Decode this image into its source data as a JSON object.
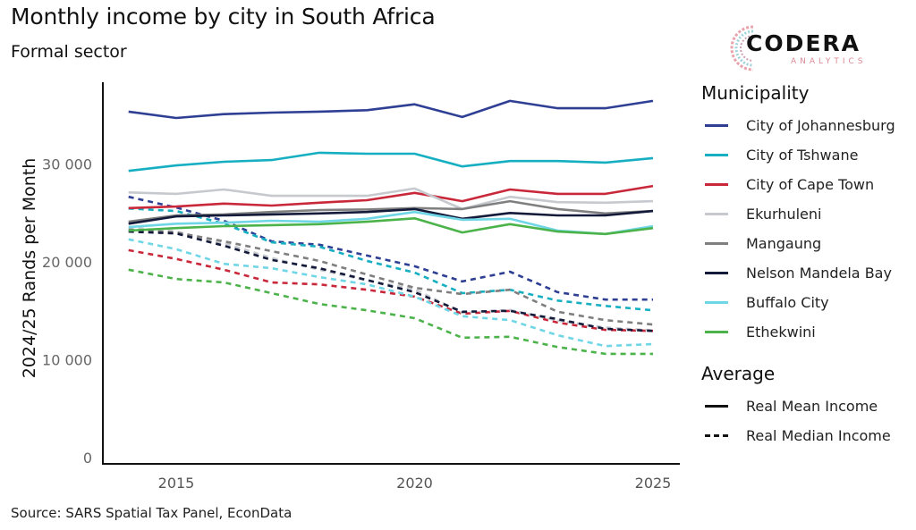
{
  "header": {
    "title": "Monthly income by city in South Africa",
    "subtitle": "Formal sector"
  },
  "logo": {
    "name": "CODERA",
    "tagline": "ANALYTICS"
  },
  "footer": {
    "source": "Source: SARS Spatial Tax Panel, EconData"
  },
  "legend": {
    "municipality_title": "Municipality",
    "average_title": "Average",
    "municipalities": [
      {
        "name": "City of Johannesburg",
        "color": "#2e3f94"
      },
      {
        "name": "City of Tshwane",
        "color": "#16afc2"
      },
      {
        "name": "City of Cape Town",
        "color": "#c8283a"
      },
      {
        "name": "Ekurhuleni",
        "color": "#c6c9ce"
      },
      {
        "name": "Mangaung",
        "color": "#7f7f7f"
      },
      {
        "name": "Nelson Mandela Bay",
        "color": "#141a3a"
      },
      {
        "name": "Buffalo City",
        "color": "#6fd6e6"
      },
      {
        "name": "Ethekwini",
        "color": "#4cb34a"
      }
    ],
    "averages": [
      {
        "name": "Real Mean Income",
        "style": "solid"
      },
      {
        "name": "Real Median Income",
        "style": "dashed"
      }
    ]
  },
  "chart_data": {
    "type": "line",
    "title": "Monthly income by city in South Africa",
    "subtitle": "Formal sector",
    "xlabel": "",
    "ylabel": "2024/25 Rands per Month",
    "x": [
      2014,
      2015,
      2016,
      2017,
      2018,
      2019,
      2020,
      2021,
      2022,
      2023,
      2024,
      2025
    ],
    "xlim": [
      2013,
      2025.6
    ],
    "ylim": [
      0,
      38000
    ],
    "xticks": [
      2015,
      2020,
      2025
    ],
    "xtick_labels": [
      "2015",
      "2020",
      "2025"
    ],
    "yticks": [
      0,
      10000,
      20000,
      30000
    ],
    "ytick_labels": [
      "0",
      "10 000",
      "20 000",
      "30 000"
    ],
    "grid": false,
    "legend_position": "right",
    "series": [
      {
        "name": "City of Johannesburg",
        "measure": "Real Mean Income",
        "color": "#2e3f94",
        "values": [
          35350,
          34700,
          35100,
          35250,
          35350,
          35500,
          36100,
          34800,
          36450,
          35700,
          35700,
          36450
        ]
      },
      {
        "name": "City of Tshwane",
        "measure": "Real Mean Income",
        "color": "#16afc2",
        "values": [
          29300,
          29850,
          30230,
          30400,
          31150,
          31050,
          31050,
          29750,
          30300,
          30300,
          30150,
          30600
        ]
      },
      {
        "name": "City of Cape Town",
        "measure": "Real Mean Income",
        "color": "#c8283a",
        "values": [
          25500,
          25650,
          25950,
          25750,
          26050,
          26300,
          27050,
          26200,
          27400,
          26950,
          26950,
          27750
        ]
      },
      {
        "name": "Ekurhuleni",
        "measure": "Real Mean Income",
        "color": "#c6c9ce",
        "values": [
          27100,
          26950,
          27400,
          26750,
          26750,
          26750,
          27500,
          25400,
          26650,
          26100,
          26050,
          26200
        ]
      },
      {
        "name": "Mangaung",
        "measure": "Real Mean Income",
        "color": "#7f7f7f",
        "values": [
          24100,
          24750,
          24850,
          25100,
          25300,
          25350,
          25500,
          25400,
          26200,
          25400,
          24950,
          25200
        ]
      },
      {
        "name": "Nelson Mandela Bay",
        "measure": "Real Mean Income",
        "color": "#141a3a",
        "values": [
          23900,
          24650,
          24750,
          24850,
          24950,
          25100,
          25400,
          24400,
          25000,
          24750,
          24750,
          25200
        ]
      },
      {
        "name": "Buffalo City",
        "measure": "Real Mean Income",
        "color": "#6fd6e6",
        "values": [
          23550,
          23900,
          24000,
          24200,
          24100,
          24400,
          25100,
          24300,
          24400,
          23200,
          22850,
          23650
        ]
      },
      {
        "name": "Ethekwini",
        "measure": "Real Mean Income",
        "color": "#4cb34a",
        "values": [
          23200,
          23450,
          23650,
          23750,
          23850,
          24100,
          24450,
          23000,
          23850,
          23100,
          22850,
          23450
        ]
      },
      {
        "name": "City of Johannesburg",
        "measure": "Real Median Income",
        "color": "#2e3f94",
        "values": [
          26650,
          25550,
          24200,
          22100,
          21750,
          20650,
          19550,
          18000,
          19000,
          16900,
          16150,
          16150
        ]
      },
      {
        "name": "City of Tshwane",
        "measure": "Real Median Income",
        "color": "#16afc2",
        "values": [
          25450,
          25200,
          23900,
          22000,
          21550,
          20100,
          18900,
          16800,
          17150,
          16050,
          15500,
          15050
        ]
      },
      {
        "name": "City of Cape Town",
        "measure": "Real Median Income",
        "color": "#c8283a",
        "values": [
          21200,
          20300,
          19200,
          17900,
          17700,
          17150,
          16450,
          14700,
          15000,
          13800,
          13050,
          12950
        ]
      },
      {
        "name": "Ekurhuleni",
        "measure": "Real Median Income",
        "color": "#c6c9ce",
        "values": [
          23500,
          23100,
          21900,
          20400,
          19200,
          18100,
          17200,
          14800,
          15100,
          14000,
          13300,
          13000
        ]
      },
      {
        "name": "Mangaung",
        "measure": "Real Median Income",
        "color": "#7f7f7f",
        "values": [
          23300,
          23000,
          22100,
          21100,
          20100,
          18700,
          17350,
          16700,
          17150,
          14900,
          14050,
          13600
        ]
      },
      {
        "name": "Nelson Mandela Bay",
        "measure": "Real Median Income",
        "color": "#141a3a",
        "values": [
          23100,
          22900,
          21650,
          20200,
          19350,
          18150,
          16900,
          14900,
          15000,
          14150,
          13150,
          12950
        ]
      },
      {
        "name": "Buffalo City",
        "measure": "Real Median Income",
        "color": "#6fd6e6",
        "values": [
          22300,
          21300,
          19800,
          19350,
          18450,
          17700,
          16450,
          14450,
          14050,
          12500,
          11400,
          11600
        ]
      },
      {
        "name": "Ethekwini",
        "measure": "Real Median Income",
        "color": "#4cb34a",
        "values": [
          19200,
          18250,
          17900,
          16800,
          15700,
          15050,
          14250,
          12250,
          12350,
          11300,
          10600,
          10600
        ]
      }
    ]
  }
}
